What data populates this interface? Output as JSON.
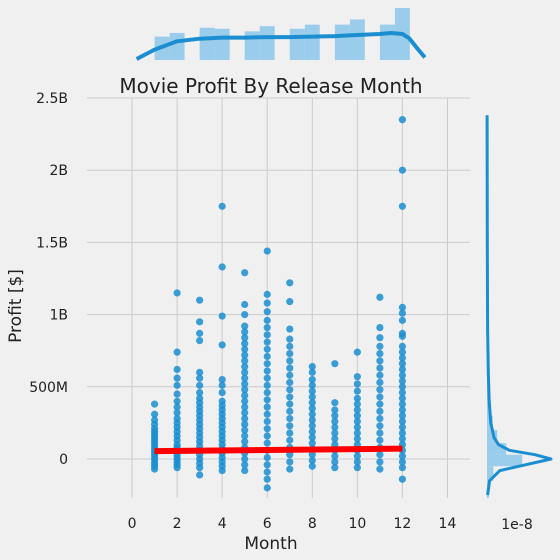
{
  "chart_data": {
    "type": "scatter",
    "title": "Movie Profit By Release Month",
    "xlabel": "Month",
    "ylabel": "Profit [$]",
    "xlim": [
      -2,
      15
    ],
    "ylim": [
      -270000000,
      2500000000
    ],
    "xticks": [
      0,
      2,
      4,
      6,
      8,
      10,
      12,
      14
    ],
    "xtick_labels": [
      "0",
      "2",
      "4",
      "6",
      "8",
      "10",
      "12",
      "14"
    ],
    "yticks": [
      0,
      500000000,
      1000000000,
      1500000000,
      2000000000,
      2500000000
    ],
    "ytick_labels": [
      "0",
      "500M",
      "1B",
      "1.5B",
      "2B",
      "2.5B"
    ],
    "marginal_offset_label": "1e-8",
    "grid": true,
    "colors": {
      "points": "#1a8ed1",
      "regression": "#ff0000",
      "background": "#f0f0f0",
      "grid": "#cbcbcb",
      "hist": "#8fc9ea"
    },
    "regression_line": {
      "x": [
        1,
        12
      ],
      "y": [
        55000000,
        72000000
      ]
    },
    "points": [
      [
        1,
        380000000
      ],
      [
        1,
        310000000
      ],
      [
        1,
        270000000
      ],
      [
        1,
        240000000
      ],
      [
        1,
        210000000
      ],
      [
        1,
        190000000
      ],
      [
        1,
        170000000
      ],
      [
        1,
        150000000
      ],
      [
        1,
        130000000
      ],
      [
        1,
        110000000
      ],
      [
        1,
        90000000
      ],
      [
        1,
        70000000
      ],
      [
        1,
        50000000
      ],
      [
        1,
        30000000
      ],
      [
        1,
        10000000
      ],
      [
        1,
        -10000000
      ],
      [
        1,
        -30000000
      ],
      [
        1,
        -50000000
      ],
      [
        1,
        -70000000
      ],
      [
        2,
        1150000000
      ],
      [
        2,
        740000000
      ],
      [
        2,
        620000000
      ],
      [
        2,
        560000000
      ],
      [
        2,
        510000000
      ],
      [
        2,
        450000000
      ],
      [
        2,
        400000000
      ],
      [
        2,
        360000000
      ],
      [
        2,
        320000000
      ],
      [
        2,
        280000000
      ],
      [
        2,
        250000000
      ],
      [
        2,
        220000000
      ],
      [
        2,
        190000000
      ],
      [
        2,
        160000000
      ],
      [
        2,
        130000000
      ],
      [
        2,
        100000000
      ],
      [
        2,
        80000000
      ],
      [
        2,
        60000000
      ],
      [
        2,
        40000000
      ],
      [
        2,
        20000000
      ],
      [
        2,
        0
      ],
      [
        2,
        -20000000
      ],
      [
        2,
        -40000000
      ],
      [
        2,
        -60000000
      ],
      [
        3,
        1100000000
      ],
      [
        3,
        950000000
      ],
      [
        3,
        870000000
      ],
      [
        3,
        820000000
      ],
      [
        3,
        600000000
      ],
      [
        3,
        560000000
      ],
      [
        3,
        510000000
      ],
      [
        3,
        460000000
      ],
      [
        3,
        420000000
      ],
      [
        3,
        390000000
      ],
      [
        3,
        360000000
      ],
      [
        3,
        330000000
      ],
      [
        3,
        300000000
      ],
      [
        3,
        270000000
      ],
      [
        3,
        240000000
      ],
      [
        3,
        210000000
      ],
      [
        3,
        180000000
      ],
      [
        3,
        150000000
      ],
      [
        3,
        120000000
      ],
      [
        3,
        90000000
      ],
      [
        3,
        60000000
      ],
      [
        3,
        30000000
      ],
      [
        3,
        0
      ],
      [
        3,
        -30000000
      ],
      [
        3,
        -60000000
      ],
      [
        3,
        -110000000
      ],
      [
        4,
        1750000000
      ],
      [
        4,
        1330000000
      ],
      [
        4,
        990000000
      ],
      [
        4,
        790000000
      ],
      [
        4,
        550000000
      ],
      [
        4,
        510000000
      ],
      [
        4,
        460000000
      ],
      [
        4,
        400000000
      ],
      [
        4,
        370000000
      ],
      [
        4,
        340000000
      ],
      [
        4,
        310000000
      ],
      [
        4,
        280000000
      ],
      [
        4,
        250000000
      ],
      [
        4,
        220000000
      ],
      [
        4,
        190000000
      ],
      [
        4,
        160000000
      ],
      [
        4,
        130000000
      ],
      [
        4,
        100000000
      ],
      [
        4,
        70000000
      ],
      [
        4,
        40000000
      ],
      [
        4,
        10000000
      ],
      [
        4,
        -20000000
      ],
      [
        4,
        -50000000
      ],
      [
        4,
        -80000000
      ],
      [
        5,
        1290000000
      ],
      [
        5,
        1070000000
      ],
      [
        5,
        1000000000
      ],
      [
        5,
        920000000
      ],
      [
        5,
        880000000
      ],
      [
        5,
        840000000
      ],
      [
        5,
        800000000
      ],
      [
        5,
        760000000
      ],
      [
        5,
        720000000
      ],
      [
        5,
        680000000
      ],
      [
        5,
        640000000
      ],
      [
        5,
        600000000
      ],
      [
        5,
        560000000
      ],
      [
        5,
        520000000
      ],
      [
        5,
        480000000
      ],
      [
        5,
        440000000
      ],
      [
        5,
        400000000
      ],
      [
        5,
        360000000
      ],
      [
        5,
        320000000
      ],
      [
        5,
        280000000
      ],
      [
        5,
        240000000
      ],
      [
        5,
        200000000
      ],
      [
        5,
        160000000
      ],
      [
        5,
        120000000
      ],
      [
        5,
        80000000
      ],
      [
        5,
        40000000
      ],
      [
        5,
        0
      ],
      [
        5,
        -40000000
      ],
      [
        5,
        -80000000
      ],
      [
        6,
        1440000000
      ],
      [
        6,
        1140000000
      ],
      [
        6,
        1080000000
      ],
      [
        6,
        1020000000
      ],
      [
        6,
        960000000
      ],
      [
        6,
        910000000
      ],
      [
        6,
        860000000
      ],
      [
        6,
        810000000
      ],
      [
        6,
        760000000
      ],
      [
        6,
        710000000
      ],
      [
        6,
        660000000
      ],
      [
        6,
        610000000
      ],
      [
        6,
        560000000
      ],
      [
        6,
        510000000
      ],
      [
        6,
        460000000
      ],
      [
        6,
        410000000
      ],
      [
        6,
        360000000
      ],
      [
        6,
        310000000
      ],
      [
        6,
        260000000
      ],
      [
        6,
        210000000
      ],
      [
        6,
        160000000
      ],
      [
        6,
        110000000
      ],
      [
        6,
        60000000
      ],
      [
        6,
        10000000
      ],
      [
        6,
        -40000000
      ],
      [
        6,
        -90000000
      ],
      [
        6,
        -140000000
      ],
      [
        6,
        -200000000
      ],
      [
        7,
        1220000000
      ],
      [
        7,
        1090000000
      ],
      [
        7,
        900000000
      ],
      [
        7,
        830000000
      ],
      [
        7,
        780000000
      ],
      [
        7,
        730000000
      ],
      [
        7,
        680000000
      ],
      [
        7,
        630000000
      ],
      [
        7,
        580000000
      ],
      [
        7,
        530000000
      ],
      [
        7,
        480000000
      ],
      [
        7,
        430000000
      ],
      [
        7,
        380000000
      ],
      [
        7,
        330000000
      ],
      [
        7,
        280000000
      ],
      [
        7,
        230000000
      ],
      [
        7,
        180000000
      ],
      [
        7,
        130000000
      ],
      [
        7,
        80000000
      ],
      [
        7,
        30000000
      ],
      [
        7,
        -20000000
      ],
      [
        7,
        -70000000
      ],
      [
        8,
        640000000
      ],
      [
        8,
        600000000
      ],
      [
        8,
        550000000
      ],
      [
        8,
        510000000
      ],
      [
        8,
        470000000
      ],
      [
        8,
        430000000
      ],
      [
        8,
        390000000
      ],
      [
        8,
        350000000
      ],
      [
        8,
        310000000
      ],
      [
        8,
        270000000
      ],
      [
        8,
        230000000
      ],
      [
        8,
        190000000
      ],
      [
        8,
        150000000
      ],
      [
        8,
        110000000
      ],
      [
        8,
        70000000
      ],
      [
        8,
        30000000
      ],
      [
        8,
        -10000000
      ],
      [
        8,
        -50000000
      ],
      [
        9,
        660000000
      ],
      [
        9,
        390000000
      ],
      [
        9,
        340000000
      ],
      [
        9,
        300000000
      ],
      [
        9,
        260000000
      ],
      [
        9,
        220000000
      ],
      [
        9,
        180000000
      ],
      [
        9,
        140000000
      ],
      [
        9,
        100000000
      ],
      [
        9,
        60000000
      ],
      [
        9,
        20000000
      ],
      [
        9,
        -20000000
      ],
      [
        9,
        -60000000
      ],
      [
        10,
        740000000
      ],
      [
        10,
        570000000
      ],
      [
        10,
        520000000
      ],
      [
        10,
        470000000
      ],
      [
        10,
        420000000
      ],
      [
        10,
        380000000
      ],
      [
        10,
        340000000
      ],
      [
        10,
        300000000
      ],
      [
        10,
        260000000
      ],
      [
        10,
        220000000
      ],
      [
        10,
        180000000
      ],
      [
        10,
        140000000
      ],
      [
        10,
        100000000
      ],
      [
        10,
        60000000
      ],
      [
        10,
        20000000
      ],
      [
        10,
        -20000000
      ],
      [
        10,
        -60000000
      ],
      [
        11,
        1120000000
      ],
      [
        11,
        910000000
      ],
      [
        11,
        840000000
      ],
      [
        11,
        780000000
      ],
      [
        11,
        730000000
      ],
      [
        11,
        680000000
      ],
      [
        11,
        630000000
      ],
      [
        11,
        580000000
      ],
      [
        11,
        530000000
      ],
      [
        11,
        480000000
      ],
      [
        11,
        430000000
      ],
      [
        11,
        380000000
      ],
      [
        11,
        330000000
      ],
      [
        11,
        280000000
      ],
      [
        11,
        230000000
      ],
      [
        11,
        180000000
      ],
      [
        11,
        130000000
      ],
      [
        11,
        80000000
      ],
      [
        11,
        30000000
      ],
      [
        11,
        -20000000
      ],
      [
        11,
        -70000000
      ],
      [
        12,
        2350000000
      ],
      [
        12,
        2000000000
      ],
      [
        12,
        1750000000
      ],
      [
        12,
        1050000000
      ],
      [
        12,
        1010000000
      ],
      [
        12,
        960000000
      ],
      [
        12,
        870000000
      ],
      [
        12,
        850000000
      ],
      [
        12,
        780000000
      ],
      [
        12,
        740000000
      ],
      [
        12,
        700000000
      ],
      [
        12,
        660000000
      ],
      [
        12,
        620000000
      ],
      [
        12,
        580000000
      ],
      [
        12,
        540000000
      ],
      [
        12,
        500000000
      ],
      [
        12,
        460000000
      ],
      [
        12,
        420000000
      ],
      [
        12,
        380000000
      ],
      [
        12,
        340000000
      ],
      [
        12,
        300000000
      ],
      [
        12,
        260000000
      ],
      [
        12,
        220000000
      ],
      [
        12,
        180000000
      ],
      [
        12,
        140000000
      ],
      [
        12,
        100000000
      ],
      [
        12,
        60000000
      ],
      [
        12,
        20000000
      ],
      [
        12,
        -20000000
      ],
      [
        12,
        -60000000
      ],
      [
        12,
        -140000000
      ]
    ],
    "x_marginal_hist": {
      "bins": [
        [
          1,
          1.67
        ],
        [
          1.67,
          2.33
        ],
        [
          3,
          3.67
        ],
        [
          3.67,
          4.33
        ],
        [
          5,
          5.67
        ],
        [
          5.67,
          6.33
        ],
        [
          7,
          7.67
        ],
        [
          7.67,
          8.33
        ],
        [
          9,
          9.67
        ],
        [
          9.67,
          10.33
        ],
        [
          11,
          11.67
        ],
        [
          11.67,
          12.33
        ]
      ],
      "heights": [
        0.45,
        0.52,
        0.62,
        0.6,
        0.55,
        0.65,
        0.6,
        0.68,
        0.68,
        0.78,
        0.68,
        1.0
      ]
    },
    "x_marginal_kde": {
      "x": [
        0.2,
        1,
        2,
        3,
        4,
        5,
        6,
        7,
        8,
        9,
        10,
        11,
        11.5,
        12,
        12.3,
        12.7,
        13
      ],
      "y": [
        0.02,
        0.2,
        0.36,
        0.41,
        0.43,
        0.43,
        0.44,
        0.44,
        0.45,
        0.46,
        0.48,
        0.5,
        0.52,
        0.5,
        0.42,
        0.2,
        0.05
      ]
    },
    "y_marginal_hist": {
      "bins": [
        [
          -270000000,
          -150000000
        ],
        [
          -150000000,
          -50000000
        ],
        [
          -50000000,
          30000000
        ],
        [
          30000000,
          110000000
        ],
        [
          110000000,
          200000000
        ],
        [
          200000000,
          300000000
        ],
        [
          300000000,
          400000000
        ],
        [
          400000000,
          550000000
        ],
        [
          550000000,
          800000000
        ],
        [
          800000000,
          1200000000
        ],
        [
          1200000000,
          2380000000
        ]
      ],
      "widths": [
        0.03,
        0.1,
        0.55,
        0.3,
        0.16,
        0.09,
        0.06,
        0.04,
        0.025,
        0.015,
        0.01
      ]
    },
    "y_marginal_kde": {
      "y": [
        -250000000,
        -150000000,
        -80000000,
        -40000000,
        0,
        30000000,
        60000000,
        100000000,
        150000000,
        250000000,
        400000000,
        600000000,
        900000000,
        1500000000,
        2380000000
      ],
      "x": [
        0.01,
        0.04,
        0.2,
        0.6,
        1.0,
        0.75,
        0.35,
        0.18,
        0.11,
        0.06,
        0.035,
        0.02,
        0.01,
        0.004,
        0.002
      ]
    }
  }
}
